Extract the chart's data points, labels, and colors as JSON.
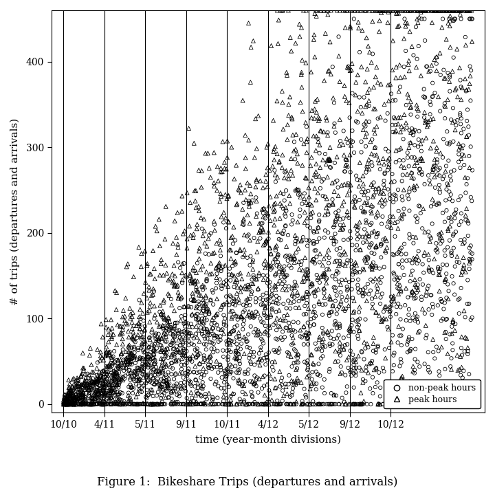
{
  "title": "Figure 1:  Bikeshare Trips (departures and arrivals)",
  "xlabel": "time (year-month divisions)",
  "ylabel": "# of trips (departures and arrivals)",
  "ylim": [
    -10,
    460
  ],
  "xlim": [
    -0.3,
    10.3
  ],
  "xtick_positions": [
    0,
    1,
    2,
    3,
    4,
    5,
    6,
    7,
    8
  ],
  "xtick_labels": [
    "10/10",
    "4/11",
    "5/11",
    "9/11",
    "10/11",
    "4/12",
    "5/12",
    "9/12",
    "10/12"
  ],
  "vline_positions": [
    0,
    1,
    2,
    3,
    4,
    5,
    6,
    7,
    8
  ],
  "ytick_positions": [
    0,
    100,
    200,
    300,
    400
  ],
  "legend_labels": [
    "non-peak hours",
    "peak hours"
  ],
  "background_color": "#ffffff",
  "point_color": "#000000",
  "seed": 123,
  "n_nonpeak": 2500,
  "n_peak": 1800,
  "fig_width": 7.2,
  "fig_height": 7.2,
  "dpi": 100,
  "np_markersize": 14,
  "pk_markersize": 18,
  "linewidth_vline": 0.8,
  "vline_color": "#000000",
  "caption": "Figure 1:  Bikeshare Trips (departures and arrivals)"
}
